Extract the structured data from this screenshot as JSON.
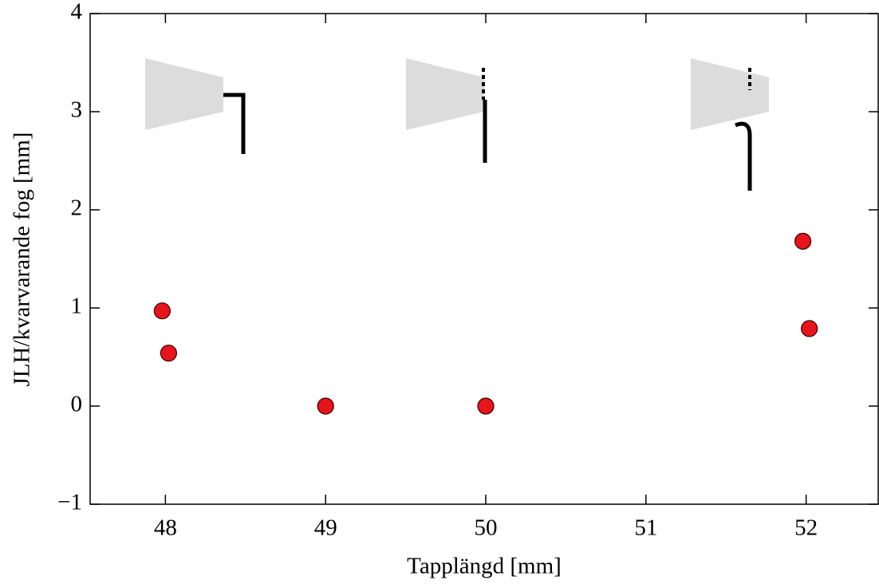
{
  "chart_data": {
    "type": "scatter",
    "xlabel": "Tapplängd [mm]",
    "ylabel": "JLH/kvarvarande fog [mm]",
    "series": [
      {
        "color": "#e8141b",
        "x": [
          47.98,
          48.02,
          49,
          50,
          51.98,
          52.02
        ],
        "values": [
          0.97,
          0.54,
          0,
          0,
          1.68,
          0.79
        ]
      }
    ],
    "xlim": [
      47.53,
      52.45
    ],
    "ylim": [
      -1,
      4
    ],
    "xticks": [
      48,
      49,
      50,
      51,
      52
    ],
    "yticks": [
      {
        "value": -1,
        "label": "−1"
      },
      0,
      1,
      2,
      3,
      4
    ]
  }
}
